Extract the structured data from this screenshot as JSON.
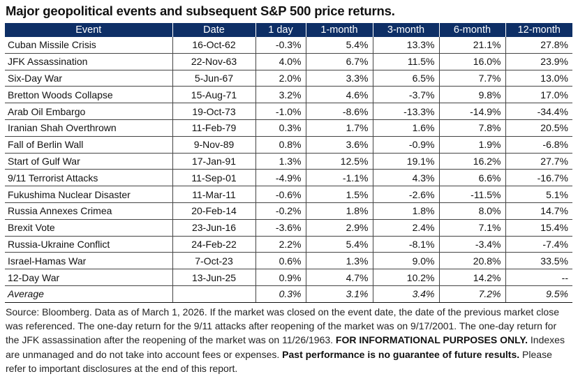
{
  "title": "Major geopolitical events and subsequent S&P 500 price returns.",
  "columns": [
    "Event",
    "Date",
    "1 day",
    "1-month",
    "3-month",
    "6-month",
    "12-month"
  ],
  "rows": [
    [
      "Cuban Missile Crisis",
      "16-Oct-62",
      "-0.3%",
      "5.4%",
      "13.3%",
      "21.1%",
      "27.8%"
    ],
    [
      "JFK Assassination",
      "22-Nov-63",
      "4.0%",
      "6.7%",
      "11.5%",
      "16.0%",
      "23.9%"
    ],
    [
      "Six-Day War",
      "5-Jun-67",
      "2.0%",
      "3.3%",
      "6.5%",
      "7.7%",
      "13.0%"
    ],
    [
      "Bretton Woods Collapse",
      "15-Aug-71",
      "3.2%",
      "4.6%",
      "-3.7%",
      "9.8%",
      "17.0%"
    ],
    [
      "Arab Oil Embargo",
      "19-Oct-73",
      "-1.0%",
      "-8.6%",
      "-13.3%",
      "-14.9%",
      "-34.4%"
    ],
    [
      "Iranian Shah Overthrown",
      "11-Feb-79",
      "0.3%",
      "1.7%",
      "1.6%",
      "7.8%",
      "20.5%"
    ],
    [
      "Fall of Berlin Wall",
      "9-Nov-89",
      "0.8%",
      "3.6%",
      "-0.9%",
      "1.9%",
      "-6.8%"
    ],
    [
      "Start of Gulf War",
      "17-Jan-91",
      "1.3%",
      "12.5%",
      "19.1%",
      "16.2%",
      "27.7%"
    ],
    [
      "9/11 Terrorist Attacks",
      "11-Sep-01",
      "-4.9%",
      "-1.1%",
      "4.3%",
      "6.6%",
      "-16.7%"
    ],
    [
      "Fukushima Nuclear Disaster",
      "11-Mar-11",
      "-0.6%",
      "1.5%",
      "-2.6%",
      "-11.5%",
      "5.1%"
    ],
    [
      "Russia Annexes Crimea",
      "20-Feb-14",
      "-0.2%",
      "1.8%",
      "1.8%",
      "8.0%",
      "14.7%"
    ],
    [
      "Brexit Vote",
      "23-Jun-16",
      "-3.6%",
      "2.9%",
      "2.4%",
      "7.1%",
      "15.4%"
    ],
    [
      "Russia-Ukraine Conflict",
      "24-Feb-22",
      "2.2%",
      "5.4%",
      "-8.1%",
      "-3.4%",
      "-7.4%"
    ],
    [
      "Israel-Hamas War",
      "7-Oct-23",
      "0.6%",
      "1.3%",
      "9.0%",
      "20.8%",
      "33.5%"
    ],
    [
      "12-Day War",
      "13-Jun-25",
      "0.9%",
      "4.7%",
      "10.2%",
      "14.2%",
      "--"
    ]
  ],
  "average": [
    "Average",
    "",
    "0.3%",
    "3.1%",
    "3.4%",
    "7.2%",
    "9.5%"
  ],
  "footnote": {
    "p1": "Source: Bloomberg. Data as of March 1, 2026. If the market was closed on the event date, the date of the previous market close was referenced. The one-day return for the 9/11 attacks after reopening of the market was on 9/17/2001. The one-day return for the JFK assassination after the reopening of the market was on 11/26/1963. ",
    "bold1": "FOR INFORMATIONAL PURPOSES ONLY.",
    "p2": " Indexes are unmanaged and do not take into account fees or expenses. ",
    "bold2": "Past performance is no guarantee of future results.",
    "p3": " Please refer to important disclosures at the end of this report."
  },
  "colors": {
    "header_bg": "#0e2f66",
    "header_text": "#ffffff"
  }
}
